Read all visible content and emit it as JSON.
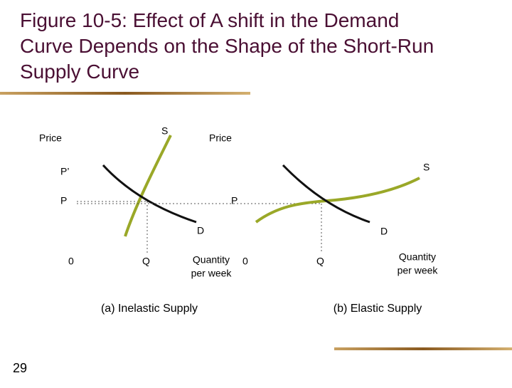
{
  "header": {
    "title_lines": [
      "Figure 10-5: Effect of A shift in the Demand",
      "Curve Depends on the Shape of the Short-Run",
      "Supply Curve"
    ]
  },
  "panel_a": {
    "price_label": "Price",
    "supply_label": "S",
    "price_new_label": "P’",
    "price_label_p": "P",
    "demand_label": "D",
    "origin_label": "0",
    "quantity_label": "Q",
    "x_axis_label_lines": [
      "Quantity",
      "per week"
    ],
    "caption": "(a) Inelastic Supply"
  },
  "panel_b": {
    "price_label": "Price",
    "supply_label": "S",
    "price_label_p": "P",
    "demand_label": "D",
    "origin_label": "0",
    "quantity_label": "Q",
    "x_axis_label_lines": [
      "Quantity",
      "per week"
    ],
    "caption": "(b) Elastic Supply"
  },
  "footer": {
    "slide_number": "29"
  }
}
